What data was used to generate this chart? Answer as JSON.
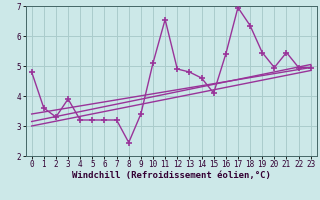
{
  "xlabel": "Windchill (Refroidissement éolien,°C)",
  "background_color": "#cce8e8",
  "grid_color": "#aacccc",
  "line_color": "#993399",
  "xlim": [
    -0.5,
    23.5
  ],
  "ylim": [
    2,
    7
  ],
  "xticks": [
    0,
    1,
    2,
    3,
    4,
    5,
    6,
    7,
    8,
    9,
    10,
    11,
    12,
    13,
    14,
    15,
    16,
    17,
    18,
    19,
    20,
    21,
    22,
    23
  ],
  "yticks": [
    2,
    3,
    4,
    5,
    6,
    7
  ],
  "series1_x": [
    0,
    1,
    2,
    3,
    4,
    5,
    6,
    7,
    8,
    9,
    10,
    11,
    12,
    13,
    14,
    15,
    16,
    17,
    18,
    19,
    20,
    21,
    22,
    23
  ],
  "series1_y": [
    4.8,
    3.6,
    3.3,
    3.9,
    3.2,
    3.2,
    3.2,
    3.2,
    2.45,
    3.4,
    5.1,
    6.55,
    4.9,
    4.8,
    4.6,
    4.1,
    5.4,
    6.95,
    6.35,
    5.45,
    4.95,
    5.45,
    4.95,
    4.95
  ],
  "reg_lines": [
    {
      "x": [
        0,
        23
      ],
      "y": [
        3.15,
        5.05
      ]
    },
    {
      "x": [
        0,
        23
      ],
      "y": [
        3.4,
        4.95
      ]
    },
    {
      "x": [
        0,
        23
      ],
      "y": [
        3.0,
        4.85
      ]
    }
  ],
  "marker": "+",
  "markersize": 5,
  "markeredgewidth": 1.2,
  "linewidth": 1.0,
  "tick_labelsize": 5.5,
  "xlabel_fontsize": 6.5
}
